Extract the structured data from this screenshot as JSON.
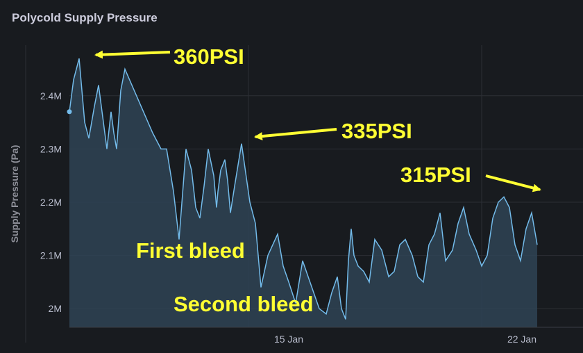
{
  "colors": {
    "background": "#181b1f",
    "series_line": "#73bbea",
    "series_fill": "#2f4355",
    "annotation": "#ffff33"
  },
  "chart_data": {
    "type": "area",
    "title": "Polycold Supply Pressure",
    "xlabel": "",
    "ylabel": "Supply Pressure (Pa)",
    "ylim": [
      1.965,
      2.495
    ],
    "x_ticks": [
      "15 Jan",
      "22 Jan"
    ],
    "y_ticks": [
      {
        "value": 2.4,
        "label": "2.4M"
      },
      {
        "value": 2.3,
        "label": "2.3M"
      },
      {
        "value": 2.2,
        "label": "2.2M"
      },
      {
        "value": 2.1,
        "label": "2.1M"
      },
      {
        "value": 2.0,
        "label": "2M"
      }
    ],
    "grid": true,
    "legend": "none",
    "series": [
      {
        "unit": "MPa",
        "x": [
          "2024-01-09 15:00",
          "2024-01-09 18:00",
          "2024-01-09 22:00",
          "2024-01-10 02:00",
          "2024-01-10 05:00",
          "2024-01-10 09:00",
          "2024-01-10 12:00",
          "2024-01-10 15:00",
          "2024-01-10 18:00",
          "2024-01-10 21:00",
          "2024-01-10 23:00",
          "2024-01-11 01:00",
          "2024-01-11 04:00",
          "2024-01-11 07:00",
          "2024-01-12 03:00",
          "2024-01-12 09:00",
          "2024-01-12 13:00",
          "2024-01-12 18:00",
          "2024-01-12 22:00",
          "2024-01-13 03:00",
          "2024-01-13 07:00",
          "2024-01-13 10:00",
          "2024-01-13 13:00",
          "2024-01-13 16:00",
          "2024-01-13 19:00",
          "2024-01-13 23:00",
          "2024-01-14 01:00",
          "2024-01-14 02:00",
          "2024-01-14 04:00",
          "2024-01-14 07:00",
          "2024-01-14 09:00",
          "2024-01-14 11:00",
          "2024-01-14 14:00",
          "2024-01-14 19:00",
          "2024-01-15 01:00",
          "2024-01-15 05:00",
          "2024-01-15 09:00",
          "2024-01-15 14:00",
          "2024-01-15 21:00",
          "2024-01-16 01:00",
          "2024-01-16 05:00",
          "2024-01-16 10:00",
          "2024-01-16 15:00",
          "2024-01-16 19:00",
          "2024-01-17 03:00",
          "2024-01-17 08:00",
          "2024-01-17 12:00",
          "2024-01-17 16:00",
          "2024-01-17 19:00",
          "2024-01-17 22:00",
          "2024-01-18 00:00",
          "2024-01-18 02:00",
          "2024-01-18 04:00",
          "2024-01-18 07:00",
          "2024-01-18 11:00",
          "2024-01-18 15:00",
          "2024-01-18 19:00",
          "2024-01-19 00:00",
          "2024-01-19 05:00",
          "2024-01-19 09:00",
          "2024-01-19 13:00",
          "2024-01-19 17:00",
          "2024-01-19 22:00",
          "2024-01-20 02:00",
          "2024-01-20 06:00",
          "2024-01-20 10:00",
          "2024-01-20 14:00",
          "2024-01-20 18:00",
          "2024-01-20 22:00",
          "2024-01-21 03:00",
          "2024-01-21 07:00",
          "2024-01-21 11:00",
          "2024-01-21 15:00",
          "2024-01-21 20:00",
          "2024-01-22 00:00",
          "2024-01-22 04:00",
          "2024-01-22 08:00",
          "2024-01-22 12:00",
          "2024-01-22 16:00",
          "2024-01-22 20:00",
          "2024-01-23 00:00",
          "2024-01-23 04:00",
          "2024-01-23 08:00",
          "2024-01-23 12:00",
          "2024-01-23 16:00"
        ],
        "values": [
          2.37,
          2.43,
          2.47,
          2.35,
          2.32,
          2.38,
          2.42,
          2.36,
          2.3,
          2.37,
          2.33,
          2.3,
          2.41,
          2.45,
          2.33,
          2.3,
          2.3,
          2.22,
          2.13,
          2.3,
          2.26,
          2.19,
          2.17,
          2.23,
          2.3,
          2.25,
          2.19,
          2.22,
          2.26,
          2.28,
          2.24,
          2.18,
          2.23,
          2.31,
          2.2,
          2.16,
          2.04,
          2.1,
          2.14,
          2.08,
          2.05,
          2.01,
          2.09,
          2.06,
          2.0,
          1.99,
          2.03,
          2.06,
          2.0,
          1.98,
          2.09,
          2.15,
          2.1,
          2.08,
          2.07,
          2.05,
          2.13,
          2.11,
          2.06,
          2.07,
          2.12,
          2.13,
          2.1,
          2.06,
          2.05,
          2.12,
          2.14,
          2.18,
          2.09,
          2.11,
          2.16,
          2.19,
          2.14,
          2.11,
          2.08,
          2.1,
          2.17,
          2.2,
          2.21,
          2.19,
          2.12,
          2.09,
          2.15,
          2.18,
          2.12
        ]
      }
    ],
    "annotations": [
      {
        "text": "360PSI"
      },
      {
        "text": "335PSI"
      },
      {
        "text": "315PSI"
      },
      {
        "text": "First bleed"
      },
      {
        "text": "Second bleed"
      }
    ]
  }
}
